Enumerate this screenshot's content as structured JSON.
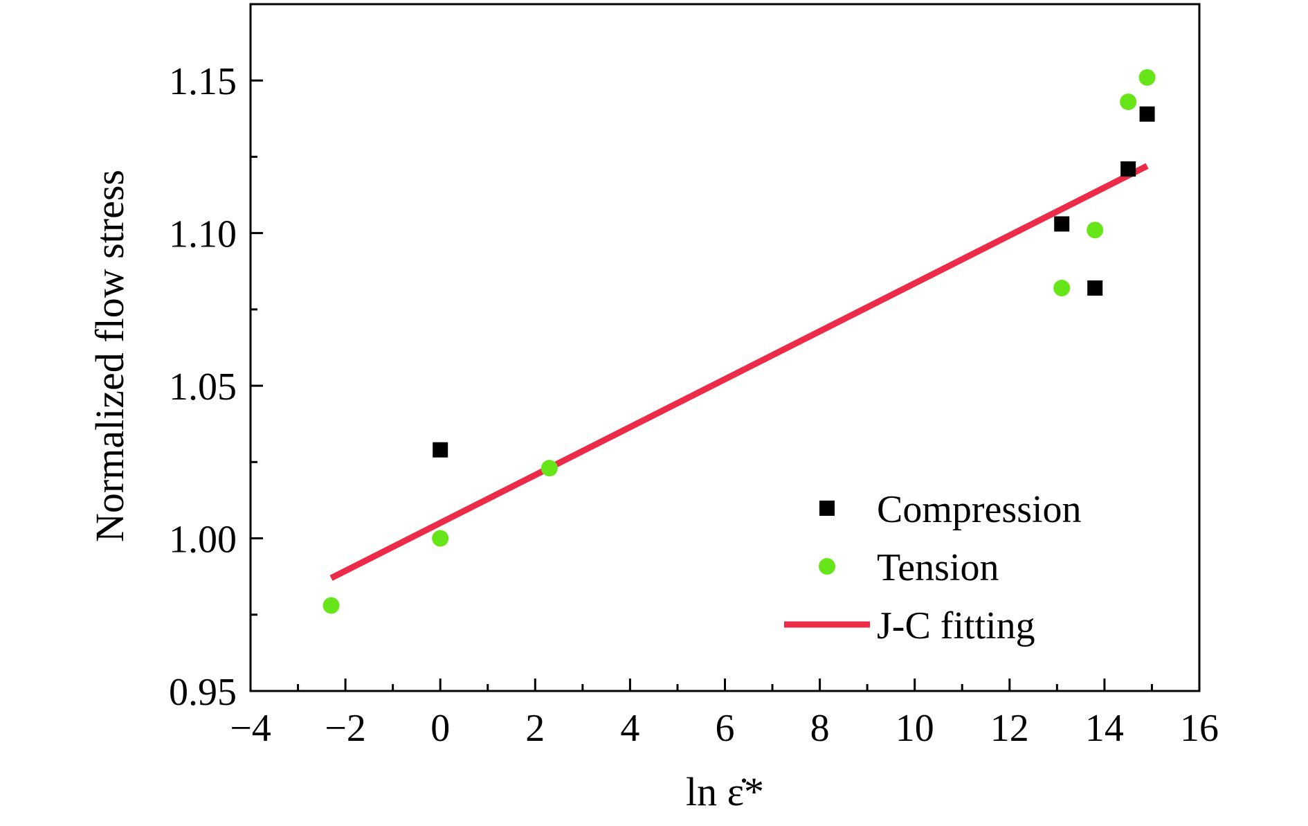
{
  "chart_data": {
    "type": "scatter",
    "xlabel": "ln ε̇*",
    "ylabel": "Normalized flow stress",
    "xlim": [
      -4,
      16
    ],
    "ylim": [
      0.95,
      1.175
    ],
    "xticks": [
      -4,
      -2,
      0,
      2,
      4,
      6,
      8,
      10,
      12,
      14,
      16
    ],
    "xtick_labels": [
      "−4",
      "−2",
      "0",
      "2",
      "4",
      "6",
      "8",
      "10",
      "12",
      "14",
      "16"
    ],
    "yticks": [
      0.95,
      1.0,
      1.05,
      1.1,
      1.15
    ],
    "ytick_labels": [
      "0.95",
      "1.00",
      "1.05",
      "1.10",
      "1.15"
    ],
    "grid": false,
    "legend_position": "bottom-right",
    "series": [
      {
        "name": "Compression",
        "kind": "scatter",
        "marker": "square",
        "color": "#000000",
        "points": [
          {
            "x": 0.0,
            "y": 1.029
          },
          {
            "x": 13.1,
            "y": 1.103
          },
          {
            "x": 13.8,
            "y": 1.082
          },
          {
            "x": 14.5,
            "y": 1.121
          },
          {
            "x": 14.9,
            "y": 1.139
          }
        ]
      },
      {
        "name": "Tension",
        "kind": "scatter",
        "marker": "circle",
        "color": "#66e619",
        "points": [
          {
            "x": -2.3,
            "y": 0.978
          },
          {
            "x": 0.0,
            "y": 1.0
          },
          {
            "x": 2.3,
            "y": 1.023
          },
          {
            "x": 13.1,
            "y": 1.082
          },
          {
            "x": 13.8,
            "y": 1.101
          },
          {
            "x": 14.5,
            "y": 1.143
          },
          {
            "x": 14.9,
            "y": 1.151
          }
        ]
      },
      {
        "name": "J-C fitting",
        "kind": "line",
        "color": "#ec2b48",
        "points": [
          {
            "x": -2.3,
            "y": 0.987
          },
          {
            "x": 14.9,
            "y": 1.122
          }
        ]
      }
    ]
  }
}
